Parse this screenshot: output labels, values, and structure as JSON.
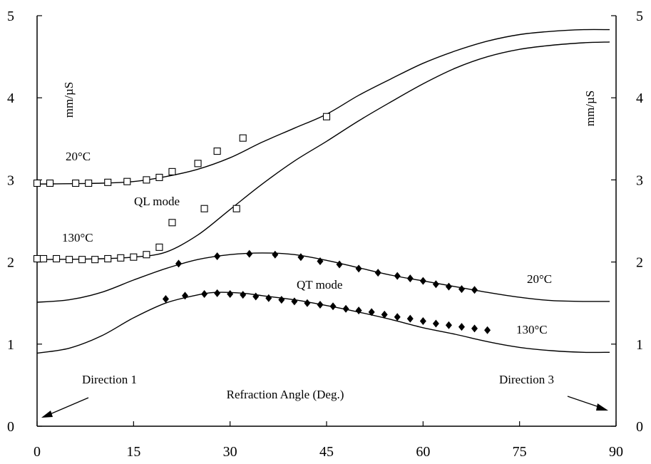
{
  "chart_data": {
    "type": "scatter",
    "title": "",
    "xlabel": "Refraction Angle (Deg.)",
    "ylabel": "mm/µS",
    "ylabel_right": "mm/µS",
    "xlim": [
      0,
      90
    ],
    "ylim": [
      0,
      5
    ],
    "x_ticks": [
      0,
      15,
      30,
      45,
      60,
      75,
      90
    ],
    "y_ticks": [
      0,
      1,
      2,
      3,
      4,
      5
    ],
    "grid": false,
    "annotations": {
      "ql_20_label": "20°C",
      "ql_130_label": "130°C",
      "ql_mode": "QL mode",
      "qt_mode": "QT mode",
      "qt_20_label": "20°C",
      "qt_130_label": "130°C",
      "direction_1": "Direction 1",
      "direction_3": "Direction 3"
    },
    "curves": [
      {
        "id": "ql-20",
        "points": [
          [
            0,
            2.95
          ],
          [
            10,
            2.96
          ],
          [
            15,
            2.98
          ],
          [
            20,
            3.04
          ],
          [
            25,
            3.13
          ],
          [
            30,
            3.27
          ],
          [
            35,
            3.46
          ],
          [
            40,
            3.63
          ],
          [
            45,
            3.8
          ],
          [
            50,
            4.03
          ],
          [
            55,
            4.23
          ],
          [
            60,
            4.42
          ],
          [
            65,
            4.57
          ],
          [
            70,
            4.69
          ],
          [
            75,
            4.77
          ],
          [
            80,
            4.81
          ],
          [
            85,
            4.83
          ],
          [
            89,
            4.83
          ]
        ]
      },
      {
        "id": "ql-130",
        "points": [
          [
            0,
            2.03
          ],
          [
            10,
            2.04
          ],
          [
            15,
            2.06
          ],
          [
            20,
            2.12
          ],
          [
            25,
            2.33
          ],
          [
            30,
            2.64
          ],
          [
            35,
            2.95
          ],
          [
            40,
            3.23
          ],
          [
            45,
            3.47
          ],
          [
            50,
            3.72
          ],
          [
            55,
            3.95
          ],
          [
            60,
            4.17
          ],
          [
            65,
            4.36
          ],
          [
            70,
            4.5
          ],
          [
            75,
            4.59
          ],
          [
            80,
            4.64
          ],
          [
            85,
            4.67
          ],
          [
            89,
            4.68
          ]
        ]
      },
      {
        "id": "qt-20",
        "points": [
          [
            0,
            1.51
          ],
          [
            5,
            1.54
          ],
          [
            10,
            1.63
          ],
          [
            15,
            1.78
          ],
          [
            20,
            1.92
          ],
          [
            25,
            2.03
          ],
          [
            30,
            2.09
          ],
          [
            35,
            2.11
          ],
          [
            40,
            2.09
          ],
          [
            45,
            2.02
          ],
          [
            50,
            1.93
          ],
          [
            55,
            1.84
          ],
          [
            60,
            1.77
          ],
          [
            65,
            1.7
          ],
          [
            70,
            1.63
          ],
          [
            75,
            1.57
          ],
          [
            80,
            1.53
          ],
          [
            85,
            1.52
          ],
          [
            89,
            1.52
          ]
        ]
      },
      {
        "id": "qt-130",
        "points": [
          [
            0,
            0.89
          ],
          [
            5,
            0.95
          ],
          [
            10,
            1.1
          ],
          [
            15,
            1.32
          ],
          [
            20,
            1.5
          ],
          [
            25,
            1.6
          ],
          [
            28,
            1.63
          ],
          [
            32,
            1.62
          ],
          [
            35,
            1.59
          ],
          [
            40,
            1.54
          ],
          [
            45,
            1.47
          ],
          [
            50,
            1.39
          ],
          [
            55,
            1.3
          ],
          [
            60,
            1.2
          ],
          [
            65,
            1.12
          ],
          [
            70,
            1.03
          ],
          [
            75,
            0.96
          ],
          [
            80,
            0.92
          ],
          [
            85,
            0.9
          ],
          [
            89,
            0.9
          ]
        ]
      }
    ],
    "series": [
      {
        "marker": "square",
        "x": [
          0,
          2,
          6,
          8,
          11,
          14,
          17,
          19,
          21,
          25,
          28,
          32,
          45
        ],
        "y": [
          2.96,
          2.96,
          2.96,
          2.96,
          2.97,
          2.98,
          3.0,
          3.03,
          3.1,
          3.2,
          3.35,
          3.51,
          3.77
        ]
      },
      {
        "marker": "square",
        "x": [
          0,
          1,
          3,
          5,
          7,
          9,
          11,
          13,
          15,
          17,
          19,
          21,
          26,
          31
        ],
        "y": [
          2.04,
          2.04,
          2.04,
          2.03,
          2.03,
          2.03,
          2.04,
          2.05,
          2.06,
          2.09,
          2.18,
          2.48,
          2.65,
          2.65
        ]
      },
      {
        "marker": "diamond",
        "x": [
          22,
          28,
          33,
          37,
          41,
          44,
          47,
          50,
          53,
          56,
          58,
          60,
          62,
          64,
          66,
          68
        ],
        "y": [
          1.98,
          2.07,
          2.1,
          2.09,
          2.06,
          2.01,
          1.97,
          1.92,
          1.87,
          1.83,
          1.8,
          1.77,
          1.73,
          1.7,
          1.67,
          1.66
        ]
      },
      {
        "marker": "diamond",
        "x": [
          20,
          23,
          26,
          28,
          30,
          32,
          34,
          36,
          38,
          40,
          42,
          44,
          46,
          48,
          50,
          52,
          54,
          56,
          58,
          60,
          62,
          64,
          66,
          68,
          70
        ],
        "y": [
          1.55,
          1.59,
          1.61,
          1.62,
          1.61,
          1.6,
          1.58,
          1.56,
          1.54,
          1.52,
          1.5,
          1.48,
          1.46,
          1.43,
          1.41,
          1.39,
          1.36,
          1.33,
          1.31,
          1.28,
          1.25,
          1.23,
          1.21,
          1.19,
          1.17
        ]
      }
    ]
  }
}
